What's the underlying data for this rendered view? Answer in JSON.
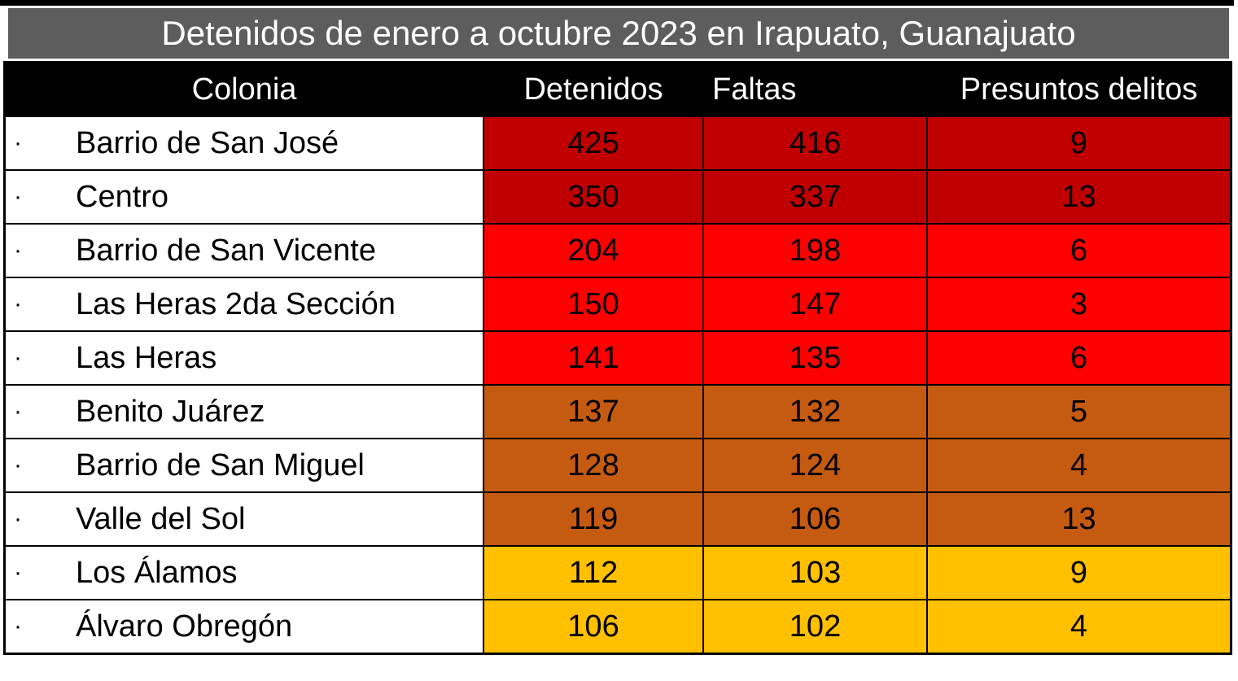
{
  "title": "Detenidos de enero a octubre 2023 en Irapuato, Guanajuato",
  "table": {
    "bullet": "·",
    "columns": [
      "Colonia",
      "Detenidos",
      "Faltas",
      "Presuntos delitos"
    ],
    "rows": [
      {
        "colonia": "Barrio de San José",
        "detenidos": "425",
        "faltas": "416",
        "presuntos_delitos": "9",
        "color": "#C00000"
      },
      {
        "colonia": "Centro",
        "detenidos": "350",
        "faltas": "337",
        "presuntos_delitos": "13",
        "color": "#C00000"
      },
      {
        "colonia": "Barrio de San Vicente",
        "detenidos": "204",
        "faltas": "198",
        "presuntos_delitos": "6",
        "color": "#FE0000"
      },
      {
        "colonia": "Las Heras 2da Sección",
        "detenidos": "150",
        "faltas": "147",
        "presuntos_delitos": "3",
        "color": "#FE0000"
      },
      {
        "colonia": "Las Heras",
        "detenidos": "141",
        "faltas": "135",
        "presuntos_delitos": "6",
        "color": "#FE0000"
      },
      {
        "colonia": "Benito Juárez",
        "detenidos": "137",
        "faltas": "132",
        "presuntos_delitos": "5",
        "color": "#C55A11"
      },
      {
        "colonia": "Barrio de San Miguel",
        "detenidos": "128",
        "faltas": "124",
        "presuntos_delitos": "4",
        "color": "#C55A11"
      },
      {
        "colonia": "Valle del Sol",
        "detenidos": "119",
        "faltas": "106",
        "presuntos_delitos": "13",
        "color": "#C55A11"
      },
      {
        "colonia": "Los Álamos",
        "detenidos": "112",
        "faltas": "103",
        "presuntos_delitos": "9",
        "color": "#FFC000"
      },
      {
        "colonia": "Álvaro Obregón",
        "detenidos": "106",
        "faltas": "102",
        "presuntos_delitos": "4",
        "color": "#FFC000"
      }
    ]
  },
  "colors": {
    "title_bar_bg": "#5D5D5D",
    "title_text": "#FFFFFF",
    "header_bg": "#000000",
    "header_text": "#FFFFFF",
    "border": "#000000",
    "tier_dark_red": "#C00000",
    "tier_red": "#FE0000",
    "tier_orange": "#C55A11",
    "tier_gold": "#FFC000"
  },
  "chart_data": {
    "type": "table",
    "title": "Detenidos de enero a octubre 2023 en Irapuato, Guanajuato",
    "columns": [
      "Colonia",
      "Detenidos",
      "Faltas",
      "Presuntos delitos"
    ],
    "rows": [
      [
        "Barrio de San José",
        425,
        416,
        9
      ],
      [
        "Centro",
        350,
        337,
        13
      ],
      [
        "Barrio de San Vicente",
        204,
        198,
        6
      ],
      [
        "Las Heras 2da Sección",
        150,
        147,
        3
      ],
      [
        "Las Heras",
        141,
        135,
        6
      ],
      [
        "Benito Juárez",
        137,
        132,
        5
      ],
      [
        "Barrio de San Miguel",
        128,
        124,
        4
      ],
      [
        "Valle del Sol",
        119,
        106,
        13
      ],
      [
        "Los Álamos",
        112,
        103,
        9
      ],
      [
        "Álvaro Obregón",
        106,
        102,
        4
      ]
    ],
    "row_heat_colors": [
      "#C00000",
      "#C00000",
      "#FE0000",
      "#FE0000",
      "#FE0000",
      "#C55A11",
      "#C55A11",
      "#C55A11",
      "#FFC000",
      "#FFC000"
    ],
    "layout_hints": {
      "heat_columns": [
        "Detenidos",
        "Faltas",
        "Presuntos delitos"
      ],
      "legend": "none",
      "grid": "black cell borders"
    }
  }
}
